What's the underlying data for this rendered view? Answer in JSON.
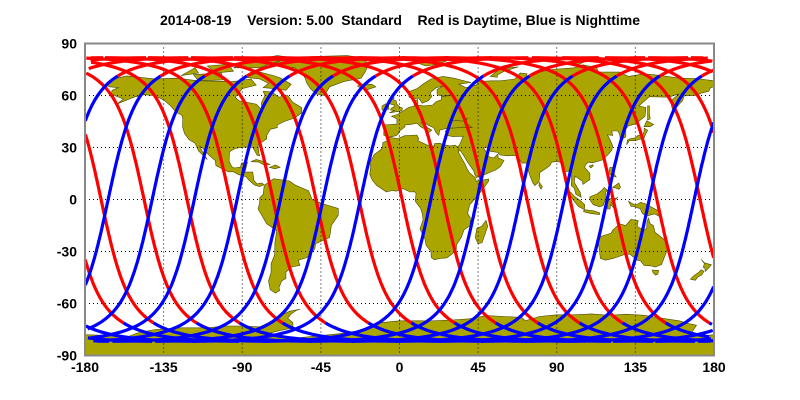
{
  "title": "2014-08-19    Version: 5.00  Standard    Red is Daytime, Blue is Nighttime",
  "chart_data": {
    "type": "map",
    "title": "2014-08-19    Version: 5.00  Standard    Red is Daytime, Blue is Nighttime",
    "date": "2014-08-19",
    "version": "Version: 5.00",
    "product": "Standard",
    "legend_text": "Red is Daytime, Blue is Nighttime",
    "xlim": [
      -180,
      180
    ],
    "ylim": [
      -90,
      90
    ],
    "xticks": [
      -180,
      -135,
      -90,
      -45,
      0,
      45,
      90,
      135,
      180
    ],
    "yticks": [
      90,
      60,
      30,
      0,
      -30,
      -60,
      -90
    ],
    "xtick_labels": [
      "-180",
      "-135",
      "-90",
      "-45",
      "0",
      "45",
      "90",
      "135",
      "180"
    ],
    "ytick_labels": [
      "90",
      "60",
      "30",
      "0",
      "-30",
      "-60",
      "-90"
    ],
    "grid": true,
    "max_track_latitude": 81.8,
    "series": [
      {
        "name": "Daytime",
        "color": "#ff0000",
        "ascending_equator_crossing_lon": [
          -170.8,
          -146.2,
          -121.6,
          -97.0,
          -72.4,
          -47.8,
          -23.2,
          1.5,
          25.0,
          49.1,
          73.0,
          97.6,
          122.3,
          147.3,
          172.0
        ]
      },
      {
        "name": "Nighttime",
        "color": "#0000ff",
        "descending_equator_crossing_lon": [
          -166.8,
          -142.2,
          -117.0,
          -92.9,
          -68.4,
          -43.6,
          -19.2,
          2.2,
          42.5,
          68.9,
          93.6,
          118.8,
          143.4,
          167.5
        ]
      }
    ],
    "land_color": "#aaa500"
  }
}
